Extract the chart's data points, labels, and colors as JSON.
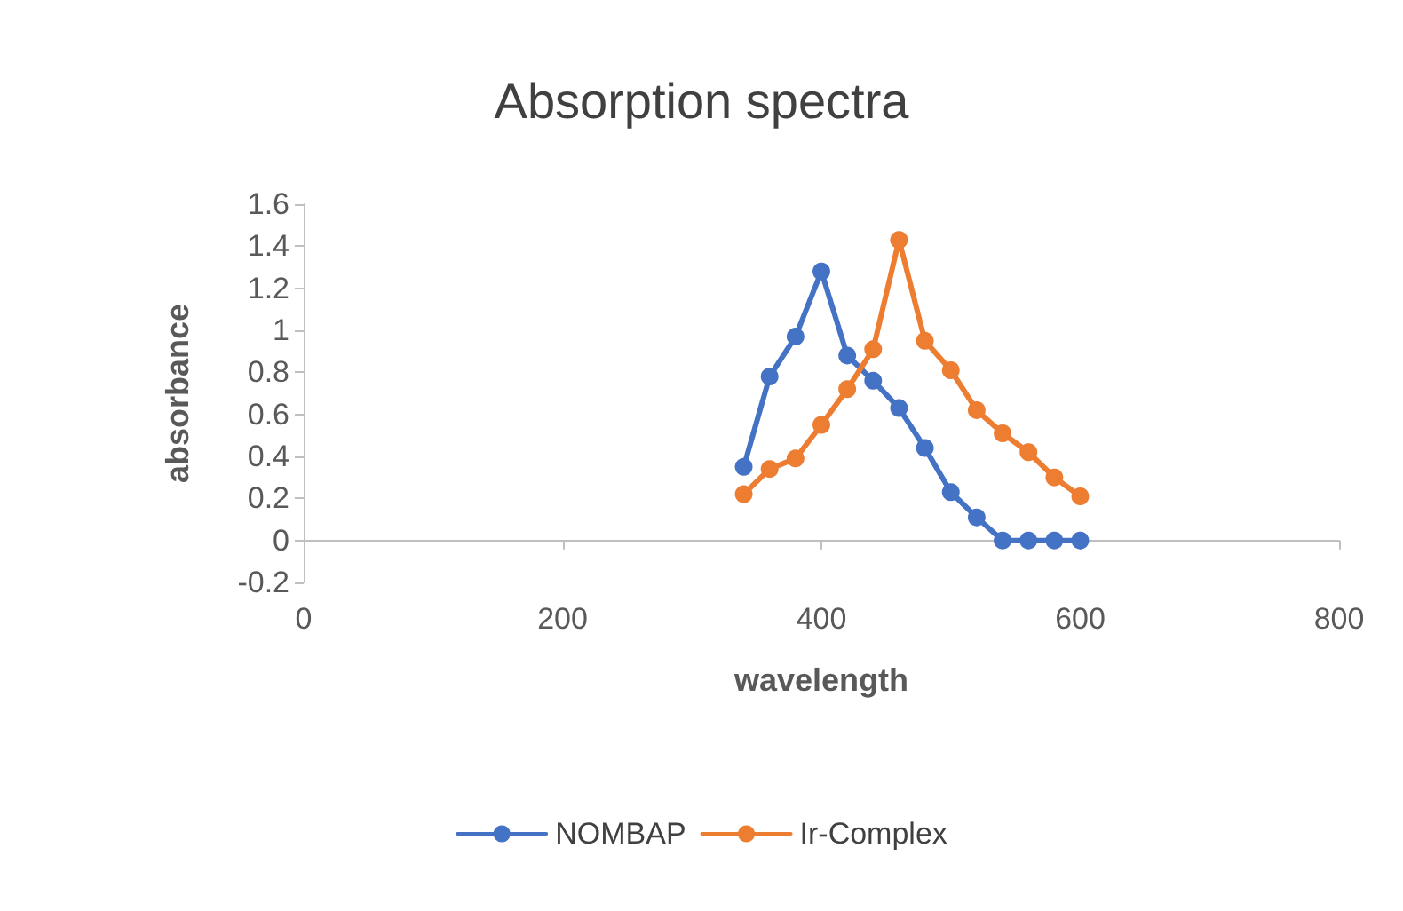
{
  "chart_data": {
    "type": "line",
    "title": "Absorption spectra",
    "xlabel": "wavelength",
    "ylabel": "absorbance",
    "x": [
      340,
      360,
      380,
      400,
      420,
      440,
      460,
      480,
      500,
      520,
      540,
      560,
      580,
      600
    ],
    "series": [
      {
        "name": "NOMBAP",
        "color": "#4472c4",
        "values": [
          0.35,
          0.78,
          0.97,
          1.28,
          0.88,
          0.76,
          0.63,
          0.44,
          0.23,
          0.11,
          0,
          0,
          0,
          0
        ]
      },
      {
        "name": "Ir-Complex",
        "color": "#ed7d31",
        "values": [
          0.22,
          0.34,
          0.39,
          0.55,
          0.72,
          0.91,
          1.43,
          0.95,
          0.81,
          0.62,
          0.51,
          0.42,
          0.3,
          0.21
        ]
      }
    ],
    "xlim": [
      0,
      800
    ],
    "xticks": [
      0,
      200,
      400,
      600,
      800
    ],
    "ylim": [
      -0.2,
      1.6
    ],
    "yticks": [
      -0.2,
      0,
      0.2,
      0.4,
      0.6,
      0.8,
      1,
      1.2,
      1.4,
      1.6
    ],
    "grid": false,
    "legend": "bottom",
    "marker": "circle",
    "line_style": "solid"
  }
}
